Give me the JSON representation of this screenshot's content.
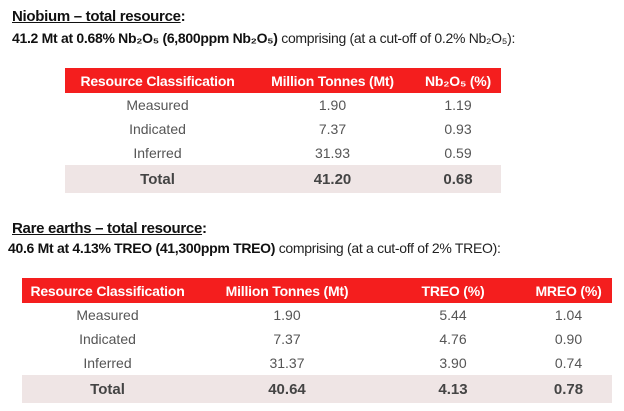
{
  "niobium": {
    "heading": "Niobium – total resource",
    "heading_colon": ":",
    "summary_bold": "41.2 Mt at 0.68% Nb₂O₅ (6,800ppm Nb₂O₅)",
    "summary_rest": " comprising  (at a cut-off of 0.2% Nb₂O₅):",
    "table": {
      "headers": [
        "Resource Classification",
        "Million Tonnes (Mt)",
        "Nb₂O₅ (%)"
      ],
      "rows": [
        [
          "Measured",
          "1.90",
          "1.19"
        ],
        [
          "Indicated",
          "7.37",
          "0.93"
        ],
        [
          "Inferred",
          "31.93",
          "0.59"
        ]
      ],
      "total": [
        "Total",
        "41.20",
        "0.68"
      ]
    }
  },
  "rare_earths": {
    "heading": "Rare earths – total resource",
    "heading_colon": ":",
    "summary_bold": "40.6 Mt at 4.13% TREO (41,300ppm TREO)",
    "summary_rest": " comprising  (at a cut-off of 2% TREO):",
    "table": {
      "headers": [
        "Resource Classification",
        "Million Tonnes (Mt)",
        "TREO (%)",
        "MREO (%)"
      ],
      "rows": [
        [
          "Measured",
          "1.90",
          "5.44",
          "1.04"
        ],
        [
          "Indicated",
          "7.37",
          "4.76",
          "0.90"
        ],
        [
          "Inferred",
          "31.37",
          "3.90",
          "0.74"
        ]
      ],
      "total": [
        "Total",
        "40.64",
        "4.13",
        "0.78"
      ]
    }
  },
  "colors": {
    "header_bg": "#f41e1e",
    "total_bg": "#efe5e5"
  }
}
